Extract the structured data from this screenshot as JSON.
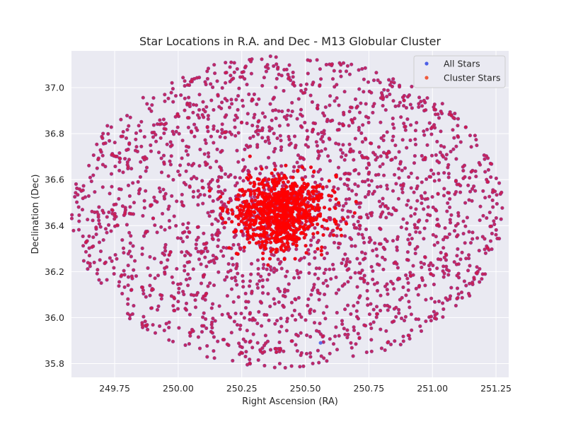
{
  "chart_data": {
    "type": "scatter",
    "title": "Star Locations in R.A. and Dec - M13 Globular Cluster",
    "xlabel": "Right Ascension (RA)",
    "ylabel": "Declination (Dec)",
    "xlim": [
      249.58,
      251.3
    ],
    "ylim": [
      35.74,
      37.16
    ],
    "x_ticks": [
      "249.75",
      "250.00",
      "250.25",
      "250.50",
      "250.75",
      "251.00",
      "251.25"
    ],
    "x_tick_values": [
      249.75,
      250.0,
      250.25,
      250.5,
      250.75,
      251.0,
      251.25
    ],
    "y_ticks": [
      "35.8",
      "36.0",
      "36.2",
      "36.4",
      "36.6",
      "36.8",
      "37.0"
    ],
    "y_tick_values": [
      35.8,
      36.0,
      36.2,
      36.4,
      36.6,
      36.8,
      37.0
    ],
    "grid": true,
    "background": "#eaeaf2",
    "legend_position": "top-right",
    "series": [
      {
        "name": "All Stars",
        "color": "#4c5fe6",
        "field_count": 2200,
        "core_count": 900,
        "field_center": [
          250.43,
          36.46
        ],
        "field_radius": [
          0.85,
          0.68
        ],
        "core_center": [
          250.4,
          36.46
        ],
        "core_radius": [
          0.16,
          0.14
        ]
      },
      {
        "name": "Cluster Stars",
        "color": "#f05a3c",
        "marker_color": "#d01a4a",
        "core_color": "#ff0000",
        "field_count": 2200,
        "core_count": 900,
        "field_center": [
          250.43,
          36.46
        ],
        "field_radius": [
          0.85,
          0.68
        ],
        "core_center": [
          250.4,
          36.46
        ],
        "core_radius": [
          0.16,
          0.14
        ]
      }
    ],
    "outlier_points": [
      {
        "x": 250.56,
        "y": 35.89,
        "series": "All Stars"
      }
    ]
  }
}
